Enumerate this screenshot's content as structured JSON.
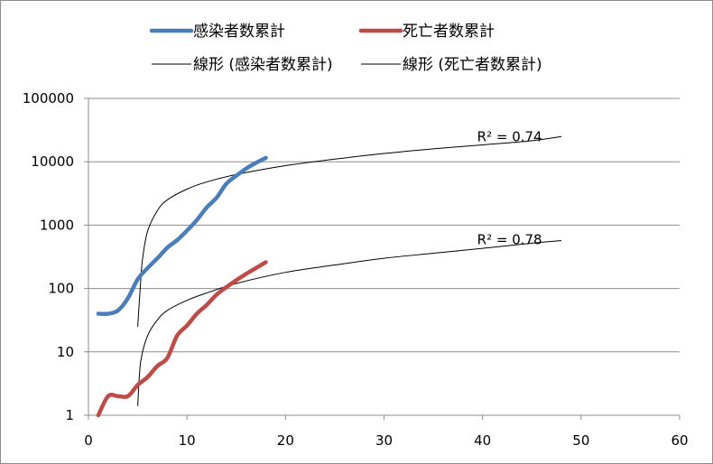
{
  "chart_data": {
    "type": "line",
    "title": "",
    "xlabel": "",
    "ylabel": "",
    "x_axis": {
      "min": 0,
      "max": 60,
      "major_unit": 10
    },
    "y_axis": {
      "scale": "log",
      "min": 1,
      "max": 100000
    },
    "grid": {
      "horizontal": true,
      "vertical": false
    },
    "legend": {
      "position": "top"
    },
    "x_ticks": [
      "0",
      "10",
      "20",
      "30",
      "40",
      "50",
      "60"
    ],
    "y_ticks": [
      "1",
      "10",
      "100",
      "1000",
      "10000",
      "100000"
    ],
    "series": [
      {
        "name": "感染者数累計",
        "color": "#4a7ebb",
        "x": [
          1,
          2,
          3,
          4,
          5,
          6,
          7,
          8,
          9,
          10,
          11,
          12,
          13,
          14,
          15,
          16,
          17,
          18
        ],
        "values": [
          40,
          40,
          45,
          70,
          140,
          210,
          300,
          440,
          580,
          820,
          1200,
          1900,
          2700,
          4500,
          6000,
          7800,
          9600,
          11500
        ]
      },
      {
        "name": "死亡者数累計",
        "color": "#be4b48",
        "x": [
          1,
          2,
          3,
          4,
          5,
          6,
          7,
          8,
          9,
          10,
          11,
          12,
          13,
          14,
          15,
          16,
          17,
          18
        ],
        "values": [
          1,
          2,
          2,
          2,
          3,
          4,
          6,
          8,
          18,
          26,
          40,
          55,
          80,
          105,
          135,
          170,
          210,
          260
        ]
      }
    ],
    "trendlines": [
      {
        "name": "線形 (感染者数累計)",
        "type": "linear",
        "x_range": [
          5,
          48
        ],
        "color": "#000000",
        "label": "R² = 0.74",
        "label_x": 40,
        "label_y": 24000,
        "anchors": [
          {
            "x": 5,
            "y": 25
          },
          {
            "x": 5.3,
            "y": 130
          },
          {
            "x": 5.5,
            "y": 300
          },
          {
            "x": 6,
            "y": 800
          },
          {
            "x": 7,
            "y": 1700
          },
          {
            "x": 8,
            "y": 2500
          },
          {
            "x": 10,
            "y": 3700
          },
          {
            "x": 12,
            "y": 4800
          },
          {
            "x": 15,
            "y": 6300
          },
          {
            "x": 20,
            "y": 8700
          },
          {
            "x": 25,
            "y": 11000
          },
          {
            "x": 30,
            "y": 13500
          },
          {
            "x": 35,
            "y": 16000
          },
          {
            "x": 40,
            "y": 18500
          },
          {
            "x": 45,
            "y": 21500
          },
          {
            "x": 48,
            "y": 25000
          }
        ]
      },
      {
        "name": "線形 (死亡者数累計)",
        "type": "linear",
        "x_range": [
          5,
          48
        ],
        "color": "#000000",
        "label": "R² = 0.78",
        "label_x": 40,
        "label_y": 570,
        "anchors": [
          {
            "x": 5,
            "y": 1.4
          },
          {
            "x": 5.3,
            "y": 7
          },
          {
            "x": 6,
            "y": 18
          },
          {
            "x": 7,
            "y": 32
          },
          {
            "x": 8,
            "y": 45
          },
          {
            "x": 10,
            "y": 65
          },
          {
            "x": 12,
            "y": 85
          },
          {
            "x": 15,
            "y": 120
          },
          {
            "x": 20,
            "y": 180
          },
          {
            "x": 25,
            "y": 235
          },
          {
            "x": 30,
            "y": 300
          },
          {
            "x": 35,
            "y": 360
          },
          {
            "x": 40,
            "y": 430
          },
          {
            "x": 45,
            "y": 520
          },
          {
            "x": 48,
            "y": 570
          }
        ]
      }
    ]
  }
}
